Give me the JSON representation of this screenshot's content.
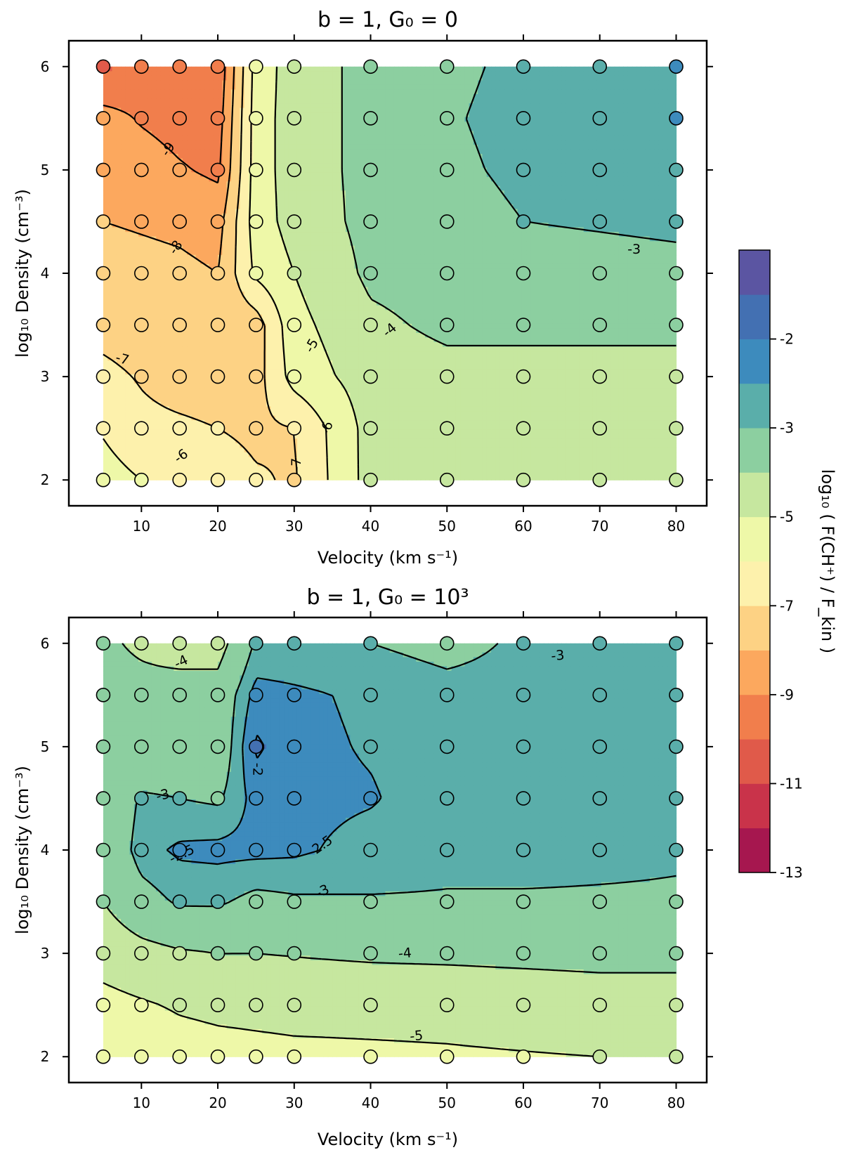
{
  "figure": {
    "shared_xlabel": "Velocity (km s⁻¹)",
    "shared_ylabel": "log₁₀ Density (cm⁻³)"
  },
  "colorbar": {
    "label": "log₁₀ ( F(CH⁺) / F_kin )",
    "levels": [
      -13,
      -12,
      -11,
      -10,
      -9,
      -8,
      -7,
      -6,
      -5,
      -4,
      -3,
      -2.5,
      -2,
      -1.5
    ],
    "colors": [
      "#a6174f",
      "#c9334a",
      "#e05a4a",
      "#f17e4c",
      "#fca85e",
      "#fdd284",
      "#fdf1ac",
      "#eef8a8",
      "#c6e79f",
      "#8ccfa0",
      "#5aaeaa",
      "#3d8bbd",
      "#4370b2",
      "#5b55a2"
    ],
    "tick_labels": [
      "-13",
      "-11",
      "-9",
      "-7",
      "-5",
      "-3",
      "-2"
    ],
    "tick_values": [
      -13,
      -11,
      -9,
      -7,
      -5,
      -3,
      -2
    ]
  },
  "chart_data": [
    {
      "type": "contour",
      "title": "b = 1,  G₀ = 0",
      "xlabel": "Velocity (km s⁻¹)",
      "ylabel": "log₁₀ Density (cm⁻³)",
      "x": [
        5,
        10,
        15,
        20,
        25,
        30,
        40,
        50,
        60,
        70,
        80
      ],
      "y": [
        2,
        2.5,
        3,
        3.5,
        4,
        4.5,
        5,
        5.5,
        6
      ],
      "xlim": [
        0.5,
        84
      ],
      "ylim": [
        1.75,
        6.25
      ],
      "xticks": [
        10,
        20,
        30,
        40,
        50,
        60,
        70,
        80
      ],
      "yticks": [
        2,
        3,
        4,
        5,
        6
      ],
      "z": [
        [
          -5.6,
          -6.0,
          -6.3,
          -6.5,
          -6.9,
          -7.1,
          -4.6,
          -4.6,
          -4.6,
          -4.7,
          -4.9
        ],
        [
          -6.1,
          -6.7,
          -6.8,
          -7.0,
          -7.2,
          -7.0,
          -4.6,
          -4.6,
          -4.6,
          -4.6,
          -4.6
        ],
        [
          -6.7,
          -7.1,
          -7.5,
          -7.6,
          -7.4,
          -5.6,
          -4.5,
          -4.3,
          -4.3,
          -4.3,
          -4.3
        ],
        [
          -7.4,
          -7.6,
          -7.7,
          -7.8,
          -7.5,
          -5.3,
          -4.2,
          -3.8,
          -3.8,
          -3.8,
          -3.8
        ],
        [
          -7.6,
          -7.7,
          -7.8,
          -8.0,
          -5.8,
          -5.0,
          -3.8,
          -3.6,
          -3.5,
          -3.4,
          -3.3
        ],
        [
          -8.0,
          -8.1,
          -8.2,
          -8.4,
          -5.5,
          -4.6,
          -3.7,
          -3.4,
          -3.0,
          -2.9,
          -2.8
        ],
        [
          -8.3,
          -8.5,
          -8.9,
          -9.2,
          -5.5,
          -4.5,
          -3.7,
          -3.2,
          -2.8,
          -2.7,
          -2.6
        ],
        [
          -8.6,
          -9.1,
          -9.4,
          -9.5,
          -5.5,
          -4.5,
          -3.7,
          -3.1,
          -2.7,
          -2.6,
          -2.5
        ],
        [
          -10.2,
          -9.7,
          -9.6,
          -9.8,
          -5.6,
          -4.5,
          -3.7,
          -3.2,
          -2.8,
          -2.6,
          -2.5
        ]
      ],
      "contour_lines": [
        -9,
        -8,
        -7,
        -6,
        -5,
        -4,
        -3
      ],
      "contour_labels": [
        {
          "text": "-9",
          "x": 13.5,
          "y": 5.2,
          "rotation": 55
        },
        {
          "text": "-8",
          "x": 14.5,
          "y": 4.25,
          "rotation": 55
        },
        {
          "text": "-7",
          "x": 7.5,
          "y": 3.17,
          "rotation": -15
        },
        {
          "text": "-6",
          "x": 15.2,
          "y": 2.23,
          "rotation": 35
        },
        {
          "text": "-5",
          "x": 32.3,
          "y": 3.3,
          "rotation": 60
        },
        {
          "text": "-4",
          "x": 42.5,
          "y": 3.45,
          "rotation": 40
        },
        {
          "text": "-7",
          "x": 30.3,
          "y": 2.15,
          "rotation": 90
        },
        {
          "text": "-6",
          "x": 34.3,
          "y": 2.5,
          "rotation": 75
        },
        {
          "text": "-3",
          "x": 74.5,
          "y": 4.23,
          "rotation": 0
        }
      ]
    },
    {
      "type": "contour",
      "title": "b = 1,  G₀ = 10³",
      "xlabel": "Velocity (km s⁻¹)",
      "ylabel": "log₁₀ Density (cm⁻³)",
      "x": [
        5,
        10,
        15,
        20,
        25,
        30,
        40,
        50,
        60,
        70,
        80
      ],
      "y": [
        2,
        2.5,
        3,
        3.5,
        4,
        4.5,
        5,
        5.5,
        6
      ],
      "xlim": [
        0.5,
        84
      ],
      "ylim": [
        1.75,
        6.25
      ],
      "xticks": [
        10,
        20,
        30,
        40,
        50,
        60,
        70,
        80
      ],
      "yticks": [
        2,
        3,
        4,
        5,
        6
      ],
      "z": [
        [
          -5.8,
          -5.6,
          -5.4,
          -5.3,
          -5.25,
          -5.2,
          -5.15,
          -5.1,
          -5.05,
          -5.0,
          -5.0
        ],
        [
          -5.3,
          -5.1,
          -4.9,
          -4.8,
          -4.75,
          -4.7,
          -4.7,
          -4.7,
          -4.6,
          -4.5,
          -4.5
        ],
        [
          -4.6,
          -4.3,
          -4.1,
          -4.0,
          -4.0,
          -3.95,
          -3.85,
          -3.8,
          -3.75,
          -3.7,
          -3.7
        ],
        [
          -4.0,
          -3.3,
          -2.9,
          -2.9,
          -3.2,
          -3.1,
          -3.05,
          -3.05,
          -3.05,
          -3.05,
          -3.05
        ],
        [
          -3.8,
          -2.7,
          -2.4,
          -2.35,
          -2.35,
          -2.4,
          -2.7,
          -2.85,
          -2.85,
          -2.9,
          -2.95
        ],
        [
          -3.8,
          -2.9,
          -3.0,
          -3.1,
          -2.3,
          -2.35,
          -2.45,
          -2.8,
          -2.8,
          -2.8,
          -2.8
        ],
        [
          -3.8,
          -3.7,
          -3.65,
          -3.6,
          -1.9,
          -2.35,
          -2.55,
          -2.8,
          -2.8,
          -2.8,
          -2.8
        ],
        [
          -3.8,
          -3.8,
          -3.7,
          -3.6,
          -2.3,
          -2.4,
          -2.6,
          -2.8,
          -2.8,
          -2.8,
          -2.8
        ],
        [
          -3.9,
          -4.1,
          -4.3,
          -4.4,
          -2.9,
          -2.9,
          -3.0,
          -3.2,
          -2.9,
          -2.8,
          -2.8
        ]
      ],
      "contour_lines": [
        -5,
        -4,
        -3,
        -2.5,
        -2
      ],
      "contour_labels": [
        {
          "text": "-4",
          "x": 15.2,
          "y": 5.82,
          "rotation": 25
        },
        {
          "text": "-3",
          "x": 12.8,
          "y": 4.53,
          "rotation": 15
        },
        {
          "text": "-2.5",
          "x": 15.3,
          "y": 3.96,
          "rotation": 25
        },
        {
          "text": "-2",
          "x": 25.2,
          "y": 4.78,
          "rotation": -90
        },
        {
          "text": "2.5",
          "x": 33.7,
          "y": 4.05,
          "rotation": 35
        },
        {
          "text": "-3",
          "x": 33.7,
          "y": 3.6,
          "rotation": 25
        },
        {
          "text": "-4",
          "x": 44.5,
          "y": 3.0,
          "rotation": 5
        },
        {
          "text": "-5",
          "x": 46,
          "y": 2.2,
          "rotation": 5
        },
        {
          "text": "-3",
          "x": 64.5,
          "y": 5.88,
          "rotation": 5
        }
      ]
    }
  ]
}
